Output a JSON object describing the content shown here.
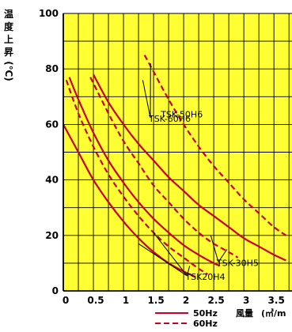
{
  "chart_data": {
    "type": "line",
    "ylabel": "温度上昇",
    "ylabel_unit": "(℃)",
    "xlabel": "風量",
    "xlabel_unit": "(㎥/m",
    "xlim": [
      0,
      3.7
    ],
    "ylim": [
      0,
      100
    ],
    "x_ticks": [
      {
        "value": 0,
        "label": "0"
      },
      {
        "value": 0.5,
        "label": "0.5"
      },
      {
        "value": 1,
        "label": "1"
      },
      {
        "value": 1.5,
        "label": "1.5"
      },
      {
        "value": 2,
        "label": "2"
      },
      {
        "value": 2.5,
        "label": "2.5"
      },
      {
        "value": 3,
        "label": "3"
      },
      {
        "value": 3.5,
        "label": "3.5"
      }
    ],
    "y_ticks": [
      {
        "value": 0,
        "label": "0"
      },
      {
        "value": 20,
        "label": "20"
      },
      {
        "value": 40,
        "label": "40"
      },
      {
        "value": 60,
        "label": "60"
      },
      {
        "value": 80,
        "label": "80"
      },
      {
        "value": 100,
        "label": "100"
      }
    ],
    "grid": true,
    "background_color": "#ffff33",
    "line_color": "#cc0022",
    "legend": [
      {
        "label": "50Hz",
        "style": "solid"
      },
      {
        "label": "60Hz",
        "style": "dashed"
      }
    ],
    "series": [
      {
        "model": "TSK20H4",
        "freq": "50Hz",
        "style": "solid",
        "points": [
          [
            0,
            60
          ],
          [
            0.25,
            50
          ],
          [
            0.5,
            40
          ],
          [
            0.75,
            32
          ],
          [
            1,
            25
          ],
          [
            1.25,
            19
          ],
          [
            1.5,
            14
          ],
          [
            1.75,
            10
          ],
          [
            2,
            7
          ],
          [
            2.2,
            5
          ]
        ]
      },
      {
        "model": "TSK20H4",
        "freq": "60Hz",
        "style": "dashed",
        "points": [
          [
            0.05,
            76
          ],
          [
            0.25,
            64
          ],
          [
            0.5,
            52
          ],
          [
            0.75,
            42
          ],
          [
            1,
            34
          ],
          [
            1.25,
            27
          ],
          [
            1.5,
            21
          ],
          [
            1.75,
            16
          ],
          [
            2,
            12
          ],
          [
            2.25,
            8
          ],
          [
            2.4,
            6
          ]
        ]
      },
      {
        "model": "TSK-30H5",
        "freq": "50Hz",
        "style": "solid",
        "points": [
          [
            0.1,
            77
          ],
          [
            0.25,
            69
          ],
          [
            0.5,
            57
          ],
          [
            0.75,
            47
          ],
          [
            1,
            39
          ],
          [
            1.25,
            32
          ],
          [
            1.5,
            26
          ],
          [
            1.75,
            21
          ],
          [
            2,
            16.5
          ],
          [
            2.25,
            13
          ],
          [
            2.5,
            10
          ],
          [
            2.6,
            9
          ]
        ]
      },
      {
        "model": "TSK-30H5",
        "freq": "60Hz",
        "style": "dashed",
        "points": [
          [
            0.45,
            77
          ],
          [
            0.75,
            64
          ],
          [
            1,
            54
          ],
          [
            1.25,
            46
          ],
          [
            1.5,
            38
          ],
          [
            1.75,
            32
          ],
          [
            2,
            26
          ],
          [
            2.25,
            21
          ],
          [
            2.5,
            17
          ],
          [
            2.75,
            14
          ],
          [
            2.9,
            12
          ]
        ]
      },
      {
        "model": "TSK-50H6",
        "freq": "50Hz",
        "style": "solid",
        "points": [
          [
            0.5,
            78
          ],
          [
            0.75,
            68
          ],
          [
            1,
            60
          ],
          [
            1.25,
            53
          ],
          [
            1.5,
            47
          ],
          [
            1.75,
            41
          ],
          [
            2,
            36
          ],
          [
            2.25,
            31
          ],
          [
            2.5,
            27
          ],
          [
            2.75,
            23
          ],
          [
            3,
            19
          ],
          [
            3.25,
            16
          ],
          [
            3.5,
            13
          ],
          [
            3.7,
            11
          ]
        ]
      },
      {
        "model": "TSK-60H6",
        "freq": "60Hz",
        "style": "dashed",
        "points": [
          [
            1.35,
            85
          ],
          [
            1.5,
            79
          ],
          [
            1.75,
            69
          ],
          [
            2,
            60
          ],
          [
            2.25,
            52
          ],
          [
            2.5,
            45
          ],
          [
            2.75,
            39
          ],
          [
            3,
            33
          ],
          [
            3.25,
            28
          ],
          [
            3.5,
            23
          ],
          [
            3.7,
            20
          ]
        ]
      }
    ],
    "annotations": [
      {
        "text": "TSK-60H6",
        "at": [
          1.42,
          61
        ],
        "leaders": [
          [
            1.32,
            76
          ],
          [
            1.45,
            82
          ]
        ]
      },
      {
        "text": "TSK-50H6",
        "at": [
          1.62,
          62.5
        ],
        "leaders": []
      },
      {
        "text": "TSK-30H5",
        "at": [
          2.55,
          9
        ],
        "leaders": [
          [
            2.45,
            20
          ],
          [
            2.72,
            15
          ]
        ]
      },
      {
        "text": "TSK20H4",
        "at": [
          2.03,
          4
        ],
        "leaders": [
          [
            1.25,
            17
          ],
          [
            1.5,
            21
          ],
          [
            2.1,
            9
          ]
        ]
      }
    ]
  }
}
